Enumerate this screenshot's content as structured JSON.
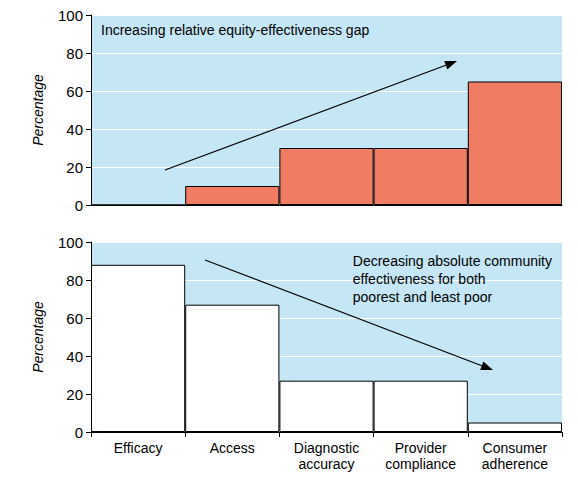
{
  "chart_data": [
    {
      "type": "bar",
      "annotation": "Increasing relative equity-effectiveness gap",
      "y_label": "Percentage",
      "categories": [
        "Efficacy",
        "Access",
        "Diagnostic\naccuracy",
        "Provider\ncompliance",
        "Consumer\nadherence"
      ],
      "values": [
        0,
        10,
        30,
        30,
        65
      ],
      "color": "#f07c64",
      "ylim": [
        0,
        100
      ],
      "yticks": [
        0,
        20,
        40,
        60,
        80,
        100
      ],
      "grid": true,
      "tick_labels": "y"
    },
    {
      "type": "bar",
      "annotation": "Decreasing absolute community\neffectiveness for both\npoorest and least poor",
      "y_label": "Percentage",
      "categories": [
        "Efficacy",
        "Access",
        "Diagnostic\naccuracy",
        "Provider\ncompliance",
        "Consumer\nadherence"
      ],
      "values": [
        88,
        67,
        27,
        27,
        5
      ],
      "color": "#ffffff",
      "ylim": [
        0,
        100
      ],
      "yticks": [
        0,
        20,
        40,
        60,
        80,
        100
      ],
      "grid": true
    }
  ]
}
